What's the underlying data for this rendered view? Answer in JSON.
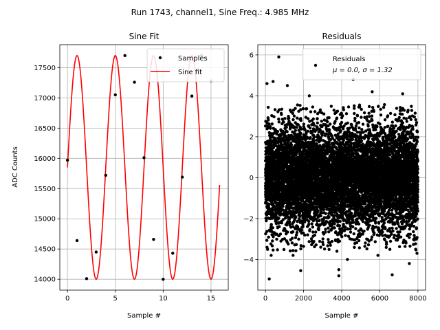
{
  "suptitle": "Run 1743, channel1, Sine Freq.: 4.985 MHz",
  "chart_data": [
    {
      "type": "line",
      "title": "Sine Fit",
      "xlabel": "Sample #",
      "ylabel": "ADC Counts",
      "xlim": [
        -0.8,
        16.8
      ],
      "ylim": [
        13820,
        17880
      ],
      "xticks": [
        0,
        5,
        10,
        15
      ],
      "yticks": [
        14000,
        14500,
        15000,
        15500,
        16000,
        16500,
        17000,
        17500
      ],
      "grid": true,
      "legend": "top-right",
      "fit": {
        "offset": 15850,
        "amplitude": 1850,
        "frequency": 0.25,
        "phase": 0.0,
        "x_range": [
          0,
          15.9
        ]
      },
      "series": [
        {
          "name": "Samples",
          "kind": "scatter",
          "color": "#000000",
          "x": [
            0,
            1,
            2,
            3,
            4,
            5,
            6,
            7,
            8,
            9,
            10,
            11,
            12,
            13,
            14,
            15
          ],
          "y": [
            15970,
            14640,
            14010,
            14450,
            15720,
            17050,
            17700,
            17260,
            16010,
            14660,
            14000,
            14430,
            15690,
            17030,
            17700,
            17280
          ]
        },
        {
          "name": "Sine fit",
          "kind": "line",
          "color": "#ff0000"
        }
      ]
    },
    {
      "type": "scatter",
      "title": "Residuals",
      "xlabel": "Sample #",
      "ylabel": "",
      "xlim": [
        -400,
        8400
      ],
      "ylim": [
        -5.5,
        6.5
      ],
      "xticks": [
        0,
        2000,
        4000,
        6000,
        8000
      ],
      "yticks": [
        -4,
        -2,
        0,
        2,
        4,
        6
      ],
      "grid": true,
      "legend": "top-right",
      "n_points": 8000,
      "mean": 0.0,
      "sigma": 1.32,
      "series": [
        {
          "name": "Residuals",
          "stats_label": "μ = 0.0, σ = 1.32",
          "color": "#000000",
          "outliers": [
            [
              700,
              5.9
            ],
            [
              80,
              4.6
            ],
            [
              400,
              4.7
            ],
            [
              1150,
              4.5
            ],
            [
              2300,
              4.0
            ],
            [
              4600,
              4.8
            ],
            [
              5600,
              4.2
            ],
            [
              7200,
              4.1
            ],
            [
              300,
              -3.8
            ],
            [
              200,
              -4.95
            ],
            [
              1450,
              -3.8
            ],
            [
              1850,
              -4.55
            ],
            [
              3850,
              -4.5
            ],
            [
              3850,
              -4.8
            ],
            [
              4300,
              -4.0
            ],
            [
              6650,
              -4.75
            ],
            [
              7550,
              -4.2
            ],
            [
              7950,
              -3.7
            ],
            [
              2900,
              -3.4
            ],
            [
              5900,
              -3.8
            ]
          ]
        }
      ]
    }
  ]
}
